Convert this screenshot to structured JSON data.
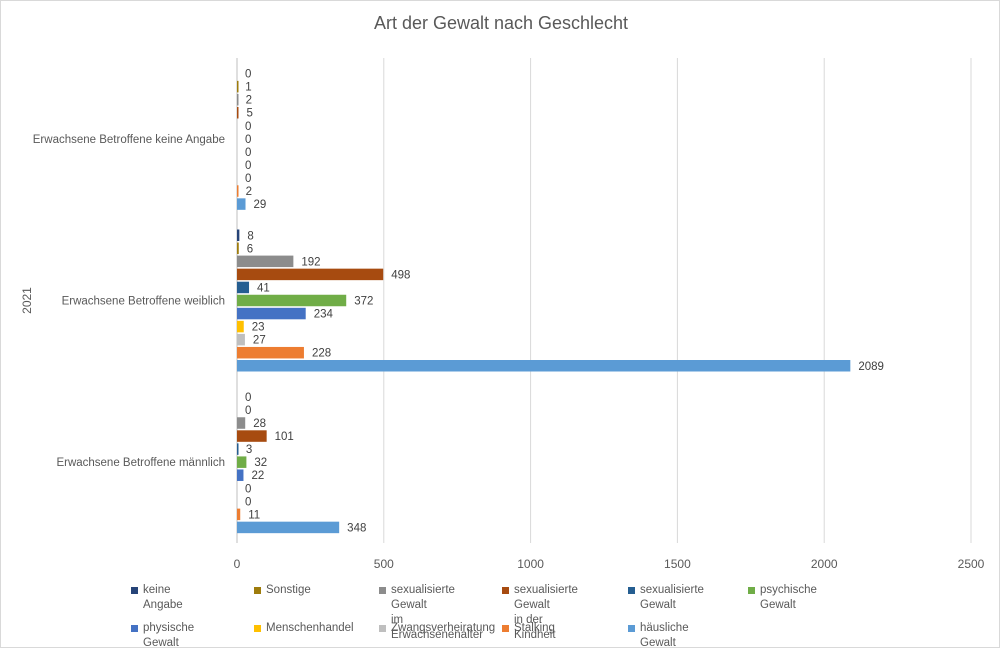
{
  "chart_data": {
    "type": "bar",
    "orientation": "horizontal",
    "title": "Art der Gewalt nach Geschlecht",
    "year_label": "2021",
    "categories": [
      "Erwachsene Betroffene keine Angabe",
      "Erwachsene Betroffene weiblich",
      "Erwachsene Betroffene männlich"
    ],
    "xlim": [
      0,
      2500
    ],
    "xticks": [
      "0",
      "500",
      "1000",
      "1500",
      "2000",
      "2500"
    ],
    "grid": true,
    "legend_position": "bottom",
    "series": [
      {
        "name": "keine Angabe",
        "color": "#264478",
        "values": [
          0,
          8,
          0
        ]
      },
      {
        "name": "Sonstige",
        "color": "#9e7c0c",
        "values": [
          1,
          6,
          0
        ]
      },
      {
        "name": "sexualisierte Gewalt im Erwachsenenalter",
        "color": "#8c8c8c",
        "values": [
          2,
          192,
          28
        ]
      },
      {
        "name": "sexualisierte Gewalt in der Kindheit",
        "color": "#a74b10",
        "values": [
          5,
          498,
          101
        ]
      },
      {
        "name": "sexualisierte Gewalt",
        "color": "#255e91",
        "values": [
          0,
          41,
          3
        ]
      },
      {
        "name": "psychische Gewalt",
        "color": "#70ad47",
        "values": [
          0,
          372,
          32
        ]
      },
      {
        "name": "physische Gewalt",
        "color": "#4472c4",
        "values": [
          0,
          234,
          22
        ]
      },
      {
        "name": "Menschenhandel",
        "color": "#ffc000",
        "values": [
          0,
          23,
          0
        ]
      },
      {
        "name": "Zwangsverheiratung",
        "color": "#bfbfbf",
        "values": [
          0,
          27,
          0
        ]
      },
      {
        "name": "Stalking",
        "color": "#ed7d31",
        "values": [
          2,
          228,
          11
        ]
      },
      {
        "name": "häusliche Gewalt",
        "color": "#5b9bd5",
        "values": [
          29,
          2089,
          348
        ]
      }
    ]
  }
}
